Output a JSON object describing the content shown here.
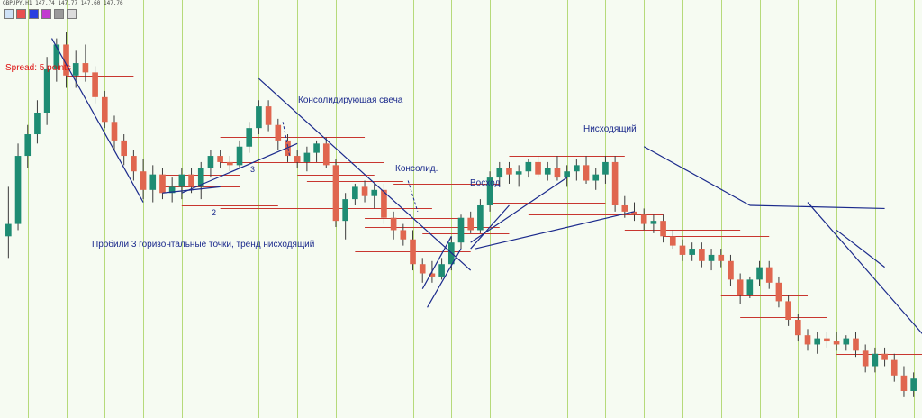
{
  "window": {
    "header_text": "GBPJPY,H1 147.74 147.77 147.60 147.76"
  },
  "spread_label": "Spread: 5 points",
  "colors": {
    "background": "#f6fbf2",
    "bull_candle": "#1e8c73",
    "bear_candle": "#e0664f",
    "trendline": "#1b2a8c",
    "level_line": "#c8362f",
    "vertical_grid": "#b6da7a",
    "text_accent": "#1b2a8c",
    "spread_text": "#d11111",
    "toolbar": [
      "#cfe2f7",
      "#e85050",
      "#2a3fe0",
      "#c23bd0",
      "#9a9a9a",
      "#dcdcdc"
    ]
  },
  "annotations": [
    {
      "id": "consolidating-candle",
      "text": "Консолидирующая свеча"
    },
    {
      "id": "consolid",
      "text": "Консолид."
    },
    {
      "id": "rise",
      "text": "Восход"
    },
    {
      "id": "descending",
      "text": "Нисходящий"
    },
    {
      "id": "broke-three-points",
      "text": "Пробили 3 горизонтальные точки, тренд нисходящий"
    },
    {
      "id": "point-2",
      "text": "2"
    },
    {
      "id": "point-3",
      "text": "3"
    }
  ],
  "chart_data": {
    "type": "candlestick",
    "symbol": "GBPJPY",
    "timeframe": "H1",
    "grid": "vertical-only",
    "candles": [
      [
        147.62,
        147.78,
        147.55,
        147.66
      ],
      [
        147.66,
        147.92,
        147.64,
        147.88
      ],
      [
        147.88,
        147.98,
        147.84,
        147.95
      ],
      [
        147.95,
        148.06,
        147.92,
        148.02
      ],
      [
        148.02,
        148.2,
        147.98,
        148.16
      ],
      [
        148.16,
        148.26,
        148.12,
        148.24
      ],
      [
        148.24,
        148.28,
        148.1,
        148.14
      ],
      [
        148.14,
        148.22,
        148.1,
        148.18
      ],
      [
        148.18,
        148.24,
        148.12,
        148.15
      ],
      [
        148.15,
        148.17,
        148.05,
        148.07
      ],
      [
        148.07,
        148.09,
        147.97,
        147.99
      ],
      [
        147.99,
        148.01,
        147.9,
        147.93
      ],
      [
        147.93,
        147.95,
        147.85,
        147.88
      ],
      [
        147.88,
        147.9,
        147.8,
        147.83
      ],
      [
        147.83,
        147.87,
        147.74,
        147.77
      ],
      [
        147.77,
        147.85,
        147.73,
        147.82
      ],
      [
        147.82,
        147.84,
        147.74,
        147.76
      ],
      [
        147.76,
        147.81,
        147.73,
        147.78
      ],
      [
        147.78,
        147.84,
        147.74,
        147.82
      ],
      [
        147.82,
        147.84,
        147.76,
        147.78
      ],
      [
        147.78,
        147.86,
        147.74,
        147.84
      ],
      [
        147.84,
        147.9,
        147.81,
        147.88
      ],
      [
        147.88,
        147.9,
        147.84,
        147.86
      ],
      [
        147.86,
        147.88,
        147.83,
        147.85
      ],
      [
        147.85,
        147.93,
        147.84,
        147.91
      ],
      [
        147.91,
        147.99,
        147.89,
        147.97
      ],
      [
        147.97,
        148.06,
        147.95,
        148.04
      ],
      [
        148.04,
        148.06,
        147.96,
        147.98
      ],
      [
        147.98,
        148.0,
        147.9,
        147.93
      ],
      [
        147.93,
        147.95,
        147.86,
        147.88
      ],
      [
        147.88,
        147.9,
        147.84,
        147.86
      ],
      [
        147.86,
        147.91,
        147.83,
        147.89
      ],
      [
        147.89,
        147.93,
        147.86,
        147.92
      ],
      [
        147.92,
        147.94,
        147.84,
        147.85
      ],
      [
        147.85,
        147.87,
        147.65,
        147.67
      ],
      [
        147.67,
        147.76,
        147.61,
        147.74
      ],
      [
        147.74,
        147.79,
        147.72,
        147.78
      ],
      [
        147.78,
        147.8,
        147.73,
        147.75
      ],
      [
        147.75,
        147.79,
        147.71,
        147.77
      ],
      [
        147.77,
        147.79,
        147.66,
        147.68
      ],
      [
        147.68,
        147.7,
        147.61,
        147.64
      ],
      [
        147.64,
        147.66,
        147.59,
        147.61
      ],
      [
        147.61,
        147.64,
        147.51,
        147.53
      ],
      [
        147.53,
        147.55,
        147.47,
        147.5
      ],
      [
        147.5,
        147.54,
        147.47,
        147.49
      ],
      [
        147.49,
        147.55,
        147.48,
        147.53
      ],
      [
        147.53,
        147.62,
        147.51,
        147.6
      ],
      [
        147.6,
        147.69,
        147.58,
        147.68
      ],
      [
        147.68,
        147.7,
        147.63,
        147.64
      ],
      [
        147.64,
        147.74,
        147.63,
        147.72
      ],
      [
        147.72,
        147.83,
        147.7,
        147.81
      ],
      [
        147.81,
        147.86,
        147.78,
        147.84
      ],
      [
        147.84,
        147.86,
        147.79,
        147.82
      ],
      [
        147.82,
        147.85,
        147.78,
        147.83
      ],
      [
        147.83,
        147.87,
        147.81,
        147.86
      ],
      [
        147.86,
        147.88,
        147.81,
        147.82
      ],
      [
        147.82,
        147.86,
        147.8,
        147.84
      ],
      [
        147.84,
        147.88,
        147.8,
        147.81
      ],
      [
        147.81,
        147.85,
        147.78,
        147.83
      ],
      [
        147.83,
        147.87,
        147.8,
        147.85
      ],
      [
        147.85,
        147.88,
        147.79,
        147.8
      ],
      [
        147.8,
        147.84,
        147.77,
        147.82
      ],
      [
        147.82,
        147.88,
        147.79,
        147.86
      ],
      [
        147.86,
        147.88,
        147.7,
        147.72
      ],
      [
        147.72,
        147.75,
        147.68,
        147.7
      ],
      [
        147.7,
        147.73,
        147.67,
        147.69
      ],
      [
        147.69,
        147.71,
        147.64,
        147.66
      ],
      [
        147.66,
        147.69,
        147.63,
        147.67
      ],
      [
        147.67,
        147.69,
        147.6,
        147.62
      ],
      [
        147.62,
        147.64,
        147.58,
        147.59
      ],
      [
        147.59,
        147.61,
        147.54,
        147.56
      ],
      [
        147.56,
        147.6,
        147.54,
        147.58
      ],
      [
        147.58,
        147.6,
        147.52,
        147.54
      ],
      [
        147.54,
        147.58,
        147.51,
        147.56
      ],
      [
        147.56,
        147.58,
        147.52,
        147.54
      ],
      [
        147.54,
        147.56,
        147.46,
        147.48
      ],
      [
        147.48,
        147.5,
        147.4,
        147.43
      ],
      [
        147.43,
        147.49,
        147.42,
        147.48
      ],
      [
        147.48,
        147.54,
        147.46,
        147.52
      ],
      [
        147.52,
        147.54,
        147.45,
        147.47
      ],
      [
        147.47,
        147.49,
        147.39,
        147.41
      ],
      [
        147.41,
        147.43,
        147.33,
        147.35
      ],
      [
        147.35,
        147.37,
        147.28,
        147.3
      ],
      [
        147.3,
        147.32,
        147.25,
        147.27
      ],
      [
        147.27,
        147.31,
        147.24,
        147.29
      ],
      [
        147.29,
        147.31,
        147.26,
        147.28
      ],
      [
        147.28,
        147.31,
        147.25,
        147.27
      ],
      [
        147.27,
        147.3,
        147.25,
        147.29
      ],
      [
        147.29,
        147.31,
        147.23,
        147.25
      ],
      [
        147.25,
        147.27,
        147.18,
        147.2
      ],
      [
        147.2,
        147.26,
        147.18,
        147.24
      ],
      [
        147.24,
        147.26,
        147.2,
        147.22
      ],
      [
        147.22,
        147.24,
        147.15,
        147.17
      ],
      [
        147.17,
        147.2,
        147.1,
        147.12
      ],
      [
        147.12,
        147.18,
        147.1,
        147.16
      ]
    ],
    "price_range": [
      147.05,
      148.32
    ],
    "horizontal_levels": [
      {
        "from": 6,
        "to": 13,
        "price": 148.14
      },
      {
        "from": 16,
        "to": 24,
        "price": 147.82
      },
      {
        "from": 16,
        "to": 24,
        "price": 147.78
      },
      {
        "from": 18,
        "to": 28,
        "price": 147.72
      },
      {
        "from": 22,
        "to": 37,
        "price": 147.94
      },
      {
        "from": 22,
        "to": 39,
        "price": 147.86
      },
      {
        "from": 22,
        "to": 44,
        "price": 147.71
      },
      {
        "from": 30,
        "to": 38,
        "price": 147.82
      },
      {
        "from": 31,
        "to": 41,
        "price": 147.8
      },
      {
        "from": 36,
        "to": 48,
        "price": 147.57
      },
      {
        "from": 37,
        "to": 47,
        "price": 147.68
      },
      {
        "from": 37,
        "to": 51,
        "price": 147.65
      },
      {
        "from": 40,
        "to": 51,
        "price": 147.79
      },
      {
        "from": 43,
        "to": 52,
        "price": 147.63
      },
      {
        "from": 50,
        "to": 62,
        "price": 147.73
      },
      {
        "from": 52,
        "to": 64,
        "price": 147.88
      },
      {
        "from": 54,
        "to": 68,
        "price": 147.69
      },
      {
        "from": 64,
        "to": 76,
        "price": 147.64
      },
      {
        "from": 68,
        "to": 79,
        "price": 147.62
      },
      {
        "from": 74,
        "to": 83,
        "price": 147.43
      },
      {
        "from": 76,
        "to": 85,
        "price": 147.36
      },
      {
        "from": 86,
        "to": 96,
        "price": 147.24
      }
    ],
    "trendlines": [
      {
        "x1": 4.5,
        "p1": 148.26,
        "x2": 14,
        "p2": 147.73
      },
      {
        "x1": 16,
        "p1": 147.76,
        "x2": 22,
        "p2": 147.78
      },
      {
        "x1": 18,
        "p1": 147.76,
        "x2": 30,
        "p2": 147.92
      },
      {
        "x1": 26,
        "p1": 148.13,
        "x2": 48,
        "p2": 147.51
      },
      {
        "x1": 43,
        "p1": 147.45,
        "x2": 46,
        "p2": 147.62
      },
      {
        "x1": 43.5,
        "p1": 147.39,
        "x2": 47,
        "p2": 147.58
      },
      {
        "x1": 48,
        "p1": 147.58,
        "x2": 52,
        "p2": 147.72
      },
      {
        "x1": 48,
        "p1": 147.6,
        "x2": 58,
        "p2": 147.81
      },
      {
        "x1": 48.5,
        "p1": 147.58,
        "x2": 65,
        "p2": 147.7
      },
      {
        "x1": 66,
        "p1": 147.91,
        "x2": 77,
        "p2": 147.72
      },
      {
        "x1": 77,
        "p1": 147.72,
        "x2": 91,
        "p2": 147.71
      },
      {
        "x1": 83,
        "p1": 147.73,
        "x2": 97,
        "p2": 147.23
      },
      {
        "x1": 86,
        "p1": 147.64,
        "x2": 91,
        "p2": 147.52
      }
    ],
    "dashed_pointers": [
      {
        "x1": 28.5,
        "p1": 147.99,
        "x2": 29.2,
        "p2": 147.88
      },
      {
        "x1": 41.5,
        "p1": 147.8,
        "x2": 42.5,
        "p2": 147.7
      }
    ],
    "vertical_grid_every": 4
  }
}
